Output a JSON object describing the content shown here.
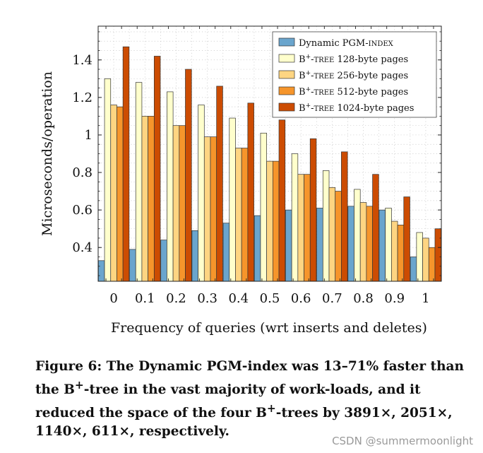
{
  "chart_data": {
    "type": "bar",
    "xlabel": "Frequency of queries (wrt inserts and deletes)",
    "ylabel": "Microseconds/operation",
    "ylim": [
      0.22,
      1.58
    ],
    "yticks": [
      0.4,
      0.6,
      0.8,
      1,
      1.2,
      1.4
    ],
    "ytick_labels": [
      "0.4",
      "0.6",
      "0.8",
      "1",
      "1.2",
      "1.4"
    ],
    "grid": true,
    "legend_position": "top-right",
    "categories": [
      "0",
      "0.1",
      "0.2",
      "0.3",
      "0.4",
      "0.5",
      "0.6",
      "0.7",
      "0.8",
      "0.9",
      "1"
    ],
    "series": [
      {
        "name": "Dynamic PGM-index",
        "legend": [
          "Dynamic PGM-",
          "index",
          ""
        ],
        "color": "#6aa5cd",
        "values": [
          0.33,
          0.39,
          0.44,
          0.49,
          0.53,
          0.57,
          0.6,
          0.61,
          0.62,
          0.6,
          0.35
        ]
      },
      {
        "name": "B+-tree 128-byte pages",
        "legend": [
          "B",
          "tree",
          " 128-byte pages"
        ],
        "color": "#ffffcc",
        "values": [
          1.3,
          1.28,
          1.23,
          1.16,
          1.09,
          1.01,
          0.9,
          0.81,
          0.71,
          0.61,
          0.48
        ]
      },
      {
        "name": "B+-tree 256-byte pages",
        "legend": [
          "B",
          "tree",
          " 256-byte pages"
        ],
        "color": "#fed582",
        "values": [
          1.16,
          1.1,
          1.05,
          0.99,
          0.93,
          0.86,
          0.79,
          0.72,
          0.64,
          0.54,
          0.45
        ]
      },
      {
        "name": "B+-tree 512-byte pages",
        "legend": [
          "B",
          "tree",
          " 512-byte pages"
        ],
        "color": "#f6952b",
        "values": [
          1.15,
          1.1,
          1.05,
          0.99,
          0.93,
          0.86,
          0.79,
          0.7,
          0.62,
          0.52,
          0.4
        ]
      },
      {
        "name": "B+-tree 1024-byte pages",
        "legend": [
          "B",
          "tree",
          " 1024-byte pages"
        ],
        "color": "#cc4c02",
        "values": [
          1.47,
          1.42,
          1.35,
          1.26,
          1.17,
          1.08,
          0.98,
          0.91,
          0.79,
          0.67,
          0.5
        ]
      }
    ]
  },
  "caption": "Figure 6: The Dynamic PGM-index was 13–71% faster than the B+-tree in the vast majority of workloads, and it reduced the space of the four B+-trees by 3891×, 2051×, 1140×, 611×, respectively.",
  "caption_parts": {
    "p1": "Figure 6: The Dynamic PGM-index was 13–71% faster than the B",
    "sup1": "+",
    "p2": "-tree in the vast majority of work-loads, and it reduced the space of the four B",
    "sup2": "+",
    "p3": "-trees by 3891×, 2051×, 1140×, 611×, respectively."
  },
  "watermark": "CSDN @summermoonlight"
}
